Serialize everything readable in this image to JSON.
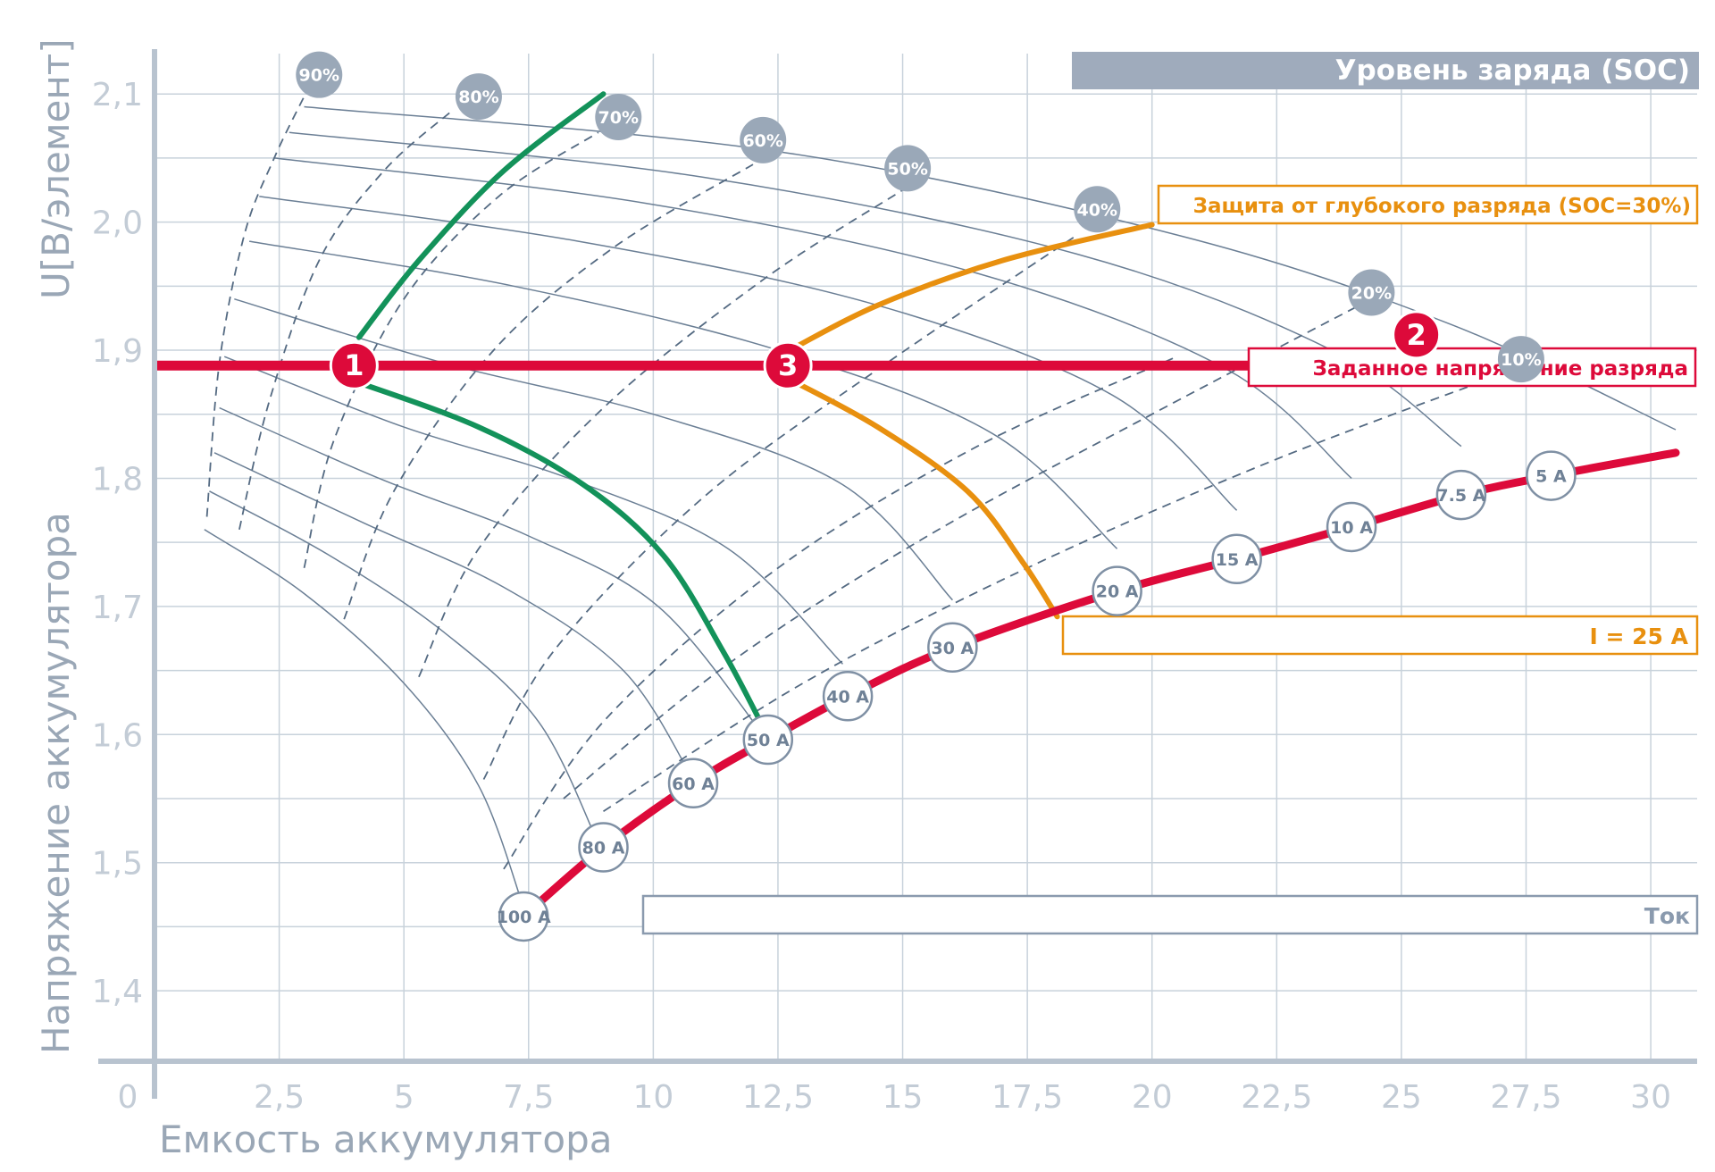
{
  "chart_data": {
    "type": "line",
    "xlabel": "Емкость аккумулятора",
    "ylabel_top": "U[В/элемент]",
    "ylabel_bottom": "Напряжение аккумулятора",
    "xlim": [
      0,
      30.5
    ],
    "ylim": [
      1.345,
      2.135
    ],
    "x_ticks": [
      {
        "value": 0,
        "label": "0"
      },
      {
        "value": 2.5,
        "label": "2,5"
      },
      {
        "value": 5,
        "label": "5"
      },
      {
        "value": 7.5,
        "label": "7,5"
      },
      {
        "value": 10,
        "label": "10"
      },
      {
        "value": 12.5,
        "label": "12,5"
      },
      {
        "value": 15,
        "label": "15"
      },
      {
        "value": 17.5,
        "label": "17,5"
      },
      {
        "value": 20,
        "label": "20"
      },
      {
        "value": 22.5,
        "label": "22,5"
      },
      {
        "value": 25,
        "label": "25"
      },
      {
        "value": 27.5,
        "label": "27,5"
      },
      {
        "value": 30,
        "label": "30"
      }
    ],
    "y_ticks": [
      {
        "value": 1.4,
        "label": "1,4"
      },
      {
        "value": 1.5,
        "label": "1,5"
      },
      {
        "value": 1.6,
        "label": "1,6"
      },
      {
        "value": 1.7,
        "label": "1,7"
      },
      {
        "value": 1.8,
        "label": "1,8"
      },
      {
        "value": 1.9,
        "label": "1,9"
      },
      {
        "value": 2.0,
        "label": "2,0"
      },
      {
        "value": 2.1,
        "label": "2,1"
      }
    ],
    "grid": true,
    "discharge_curves": [
      {
        "label": "100 A",
        "points": [
          [
            1.0,
            1.76
          ],
          [
            3.0,
            1.71
          ],
          [
            5.0,
            1.64
          ],
          [
            6.5,
            1.56
          ],
          [
            7.4,
            1.465
          ]
        ]
      },
      {
        "label": "80 A",
        "points": [
          [
            1.1,
            1.79
          ],
          [
            3.5,
            1.74
          ],
          [
            5.8,
            1.68
          ],
          [
            7.7,
            1.61
          ],
          [
            8.9,
            1.515
          ]
        ]
      },
      {
        "label": "60 A",
        "points": [
          [
            1.2,
            1.82
          ],
          [
            4.2,
            1.765
          ],
          [
            7.0,
            1.715
          ],
          [
            9.4,
            1.65
          ],
          [
            10.8,
            1.565
          ]
        ]
      },
      {
        "label": "50 A",
        "points": [
          [
            1.3,
            1.855
          ],
          [
            4.5,
            1.8
          ],
          [
            7.5,
            1.755
          ],
          [
            10.1,
            1.7
          ],
          [
            12.2,
            1.6
          ]
        ]
      },
      {
        "label": "40 A",
        "points": [
          [
            1.4,
            1.895
          ],
          [
            5.0,
            1.84
          ],
          [
            8.3,
            1.8
          ],
          [
            11.5,
            1.745
          ],
          [
            13.8,
            1.655
          ]
        ]
      },
      {
        "label": "30 A",
        "points": [
          [
            1.6,
            1.94
          ],
          [
            5.8,
            1.89
          ],
          [
            10.0,
            1.85
          ],
          [
            13.8,
            1.795
          ],
          [
            16.0,
            1.705
          ]
        ]
      },
      {
        "label": "20 A",
        "points": [
          [
            1.9,
            1.985
          ],
          [
            7.2,
            1.95
          ],
          [
            12.5,
            1.9
          ],
          [
            16.8,
            1.835
          ],
          [
            19.3,
            1.745
          ]
        ]
      },
      {
        "label": "15 A",
        "points": [
          [
            2.1,
            2.02
          ],
          [
            8.5,
            1.985
          ],
          [
            14.5,
            1.935
          ],
          [
            19.2,
            1.865
          ],
          [
            21.7,
            1.775
          ]
        ]
      },
      {
        "label": "10 A",
        "points": [
          [
            2.4,
            2.05
          ],
          [
            9.8,
            2.015
          ],
          [
            16.5,
            1.96
          ],
          [
            21.5,
            1.885
          ],
          [
            24.0,
            1.8
          ]
        ]
      },
      {
        "label": "7.5 A",
        "points": [
          [
            2.7,
            2.07
          ],
          [
            11.0,
            2.035
          ],
          [
            18.5,
            1.975
          ],
          [
            23.6,
            1.9
          ],
          [
            26.2,
            1.825
          ]
        ]
      },
      {
        "label": "5 A",
        "points": [
          [
            3.0,
            2.09
          ],
          [
            12.5,
            2.055
          ],
          [
            20.5,
            1.99
          ],
          [
            26.0,
            1.92
          ],
          [
            30.5,
            1.838
          ]
        ]
      }
    ],
    "soc_curves": [
      {
        "label": "90%",
        "points": [
          [
            1.05,
            1.77
          ],
          [
            1.3,
            1.89
          ],
          [
            1.8,
            1.99
          ],
          [
            2.4,
            2.05
          ],
          [
            3.0,
            2.098
          ]
        ]
      },
      {
        "label": "80%",
        "points": [
          [
            1.7,
            1.76
          ],
          [
            2.3,
            1.86
          ],
          [
            3.3,
            1.97
          ],
          [
            4.6,
            2.04
          ],
          [
            6.0,
            2.088
          ]
        ]
      },
      {
        "label": "70%",
        "points": [
          [
            3.0,
            1.73
          ],
          [
            3.6,
            1.83
          ],
          [
            5.0,
            1.94
          ],
          [
            6.9,
            2.02
          ],
          [
            8.9,
            2.07
          ]
        ]
      },
      {
        "label": "60%",
        "points": [
          [
            3.8,
            1.69
          ],
          [
            4.8,
            1.79
          ],
          [
            6.8,
            1.9
          ],
          [
            9.2,
            1.98
          ],
          [
            12.0,
            2.045
          ]
        ]
      },
      {
        "label": "50%",
        "points": [
          [
            5.3,
            1.645
          ],
          [
            6.5,
            1.745
          ],
          [
            9.0,
            1.855
          ],
          [
            12.2,
            1.955
          ],
          [
            15.0,
            2.025
          ]
        ]
      },
      {
        "label": "40%",
        "points": [
          [
            6.6,
            1.565
          ],
          [
            8.0,
            1.665
          ],
          [
            11.0,
            1.785
          ],
          [
            14.5,
            1.885
          ],
          [
            18.5,
            1.99
          ]
        ]
      },
      {
        "label": "30%",
        "points": [
          [
            7.0,
            1.495
          ],
          [
            9.0,
            1.61
          ],
          [
            12.5,
            1.73
          ],
          [
            16.5,
            1.825
          ],
          [
            20.5,
            1.895
          ]
        ]
      },
      {
        "label": "20%",
        "points": [
          [
            8.2,
            1.55
          ],
          [
            11.5,
            1.655
          ],
          [
            15.5,
            1.755
          ],
          [
            20.0,
            1.85
          ],
          [
            24.4,
            1.94
          ]
        ]
      },
      {
        "label": "10%",
        "points": [
          [
            9.0,
            1.54
          ],
          [
            13.0,
            1.64
          ],
          [
            17.5,
            1.73
          ],
          [
            22.5,
            1.815
          ],
          [
            27.5,
            1.888
          ]
        ]
      }
    ],
    "soc_badges": [
      {
        "label": "90%",
        "x": 3.3,
        "y": 2.115
      },
      {
        "label": "80%",
        "x": 6.5,
        "y": 2.098
      },
      {
        "label": "70%",
        "x": 9.3,
        "y": 2.082
      },
      {
        "label": "60%",
        "x": 12.2,
        "y": 2.064
      },
      {
        "label": "50%",
        "x": 15.1,
        "y": 2.042
      },
      {
        "label": "40%",
        "x": 18.9,
        "y": 2.01
      },
      {
        "label": "20%",
        "x": 24.4,
        "y": 1.945
      },
      {
        "label": "10%",
        "x": 27.4,
        "y": 1.893
      }
    ],
    "current_badges": [
      {
        "label": "100 A",
        "x": 7.4,
        "y": 1.458
      },
      {
        "label": "80 A",
        "x": 9.0,
        "y": 1.512
      },
      {
        "label": "60 A",
        "x": 10.8,
        "y": 1.562
      },
      {
        "label": "50 A",
        "x": 12.3,
        "y": 1.596
      },
      {
        "label": "40 A",
        "x": 13.9,
        "y": 1.63
      },
      {
        "label": "30 A",
        "x": 16.0,
        "y": 1.668
      },
      {
        "label": "20 A",
        "x": 19.3,
        "y": 1.712
      },
      {
        "label": "15 A",
        "x": 21.7,
        "y": 1.737
      },
      {
        "label": "10 A",
        "x": 24.0,
        "y": 1.762
      },
      {
        "label": "7.5 A",
        "x": 26.2,
        "y": 1.787
      },
      {
        "label": "5 A",
        "x": 28.0,
        "y": 1.802
      }
    ],
    "cutoff_curve": {
      "color": "#dd0a3a",
      "points": [
        [
          7.4,
          1.458
        ],
        [
          9.0,
          1.512
        ],
        [
          10.8,
          1.562
        ],
        [
          12.3,
          1.596
        ],
        [
          13.9,
          1.63
        ],
        [
          16.0,
          1.668
        ],
        [
          19.3,
          1.712
        ],
        [
          21.7,
          1.737
        ],
        [
          24.0,
          1.762
        ],
        [
          26.2,
          1.787
        ],
        [
          28.0,
          1.802
        ],
        [
          30.5,
          1.82
        ]
      ]
    },
    "set_voltage_line": {
      "y": 1.888,
      "x_start": 0,
      "x_end": 29.5,
      "color": "#dd0a3a"
    },
    "highlight_curves": [
      {
        "name": "green",
        "color": "#13925a",
        "points": [
          [
            4.1,
            1.91
          ],
          [
            5.3,
            1.97
          ],
          [
            7.0,
            2.04
          ],
          [
            9.0,
            2.1
          ]
        ]
      },
      {
        "name": "green-discharge",
        "color": "#13925a",
        "points": [
          [
            4.0,
            1.876
          ],
          [
            6.5,
            1.84
          ],
          [
            8.6,
            1.795
          ],
          [
            10.2,
            1.74
          ],
          [
            11.4,
            1.665
          ],
          [
            12.2,
            1.606
          ]
        ]
      },
      {
        "name": "orange-soc30",
        "color": "#e8900f",
        "points": [
          [
            12.5,
            1.895
          ],
          [
            14.5,
            1.935
          ],
          [
            17.0,
            1.97
          ],
          [
            20.0,
            1.998
          ]
        ]
      },
      {
        "name": "orange-25A",
        "color": "#e8900f",
        "points": [
          [
            12.7,
            1.878
          ],
          [
            14.5,
            1.84
          ],
          [
            16.3,
            1.79
          ],
          [
            17.4,
            1.735
          ],
          [
            18.1,
            1.692
          ]
        ]
      }
    ],
    "markers": [
      {
        "label": "1",
        "x": 4.0,
        "y": 1.888
      },
      {
        "label": "2",
        "x": 25.3,
        "y": 1.912
      },
      {
        "label": "3",
        "x": 12.7,
        "y": 1.888
      }
    ],
    "labels": {
      "soc": "Уровень заряда (SOC)",
      "deep_discharge": "Защита от глубокого разряда (SOC=30%)",
      "set_voltage": "Заданное напряжение разряда",
      "current_25": "I = 25 A",
      "current": "Ток"
    },
    "colors": {
      "grid": "#c8d2db",
      "axis": "#b8c3cf",
      "ticks": "#c3ccd6",
      "axis_title": "#9aa7b6",
      "soc_label_bg": "#9fabbc",
      "red": "#dd0a3a",
      "orange": "#e8900f",
      "green": "#13925a",
      "curve": "#6b7f95",
      "current_box_border": "#8a9aae"
    }
  }
}
